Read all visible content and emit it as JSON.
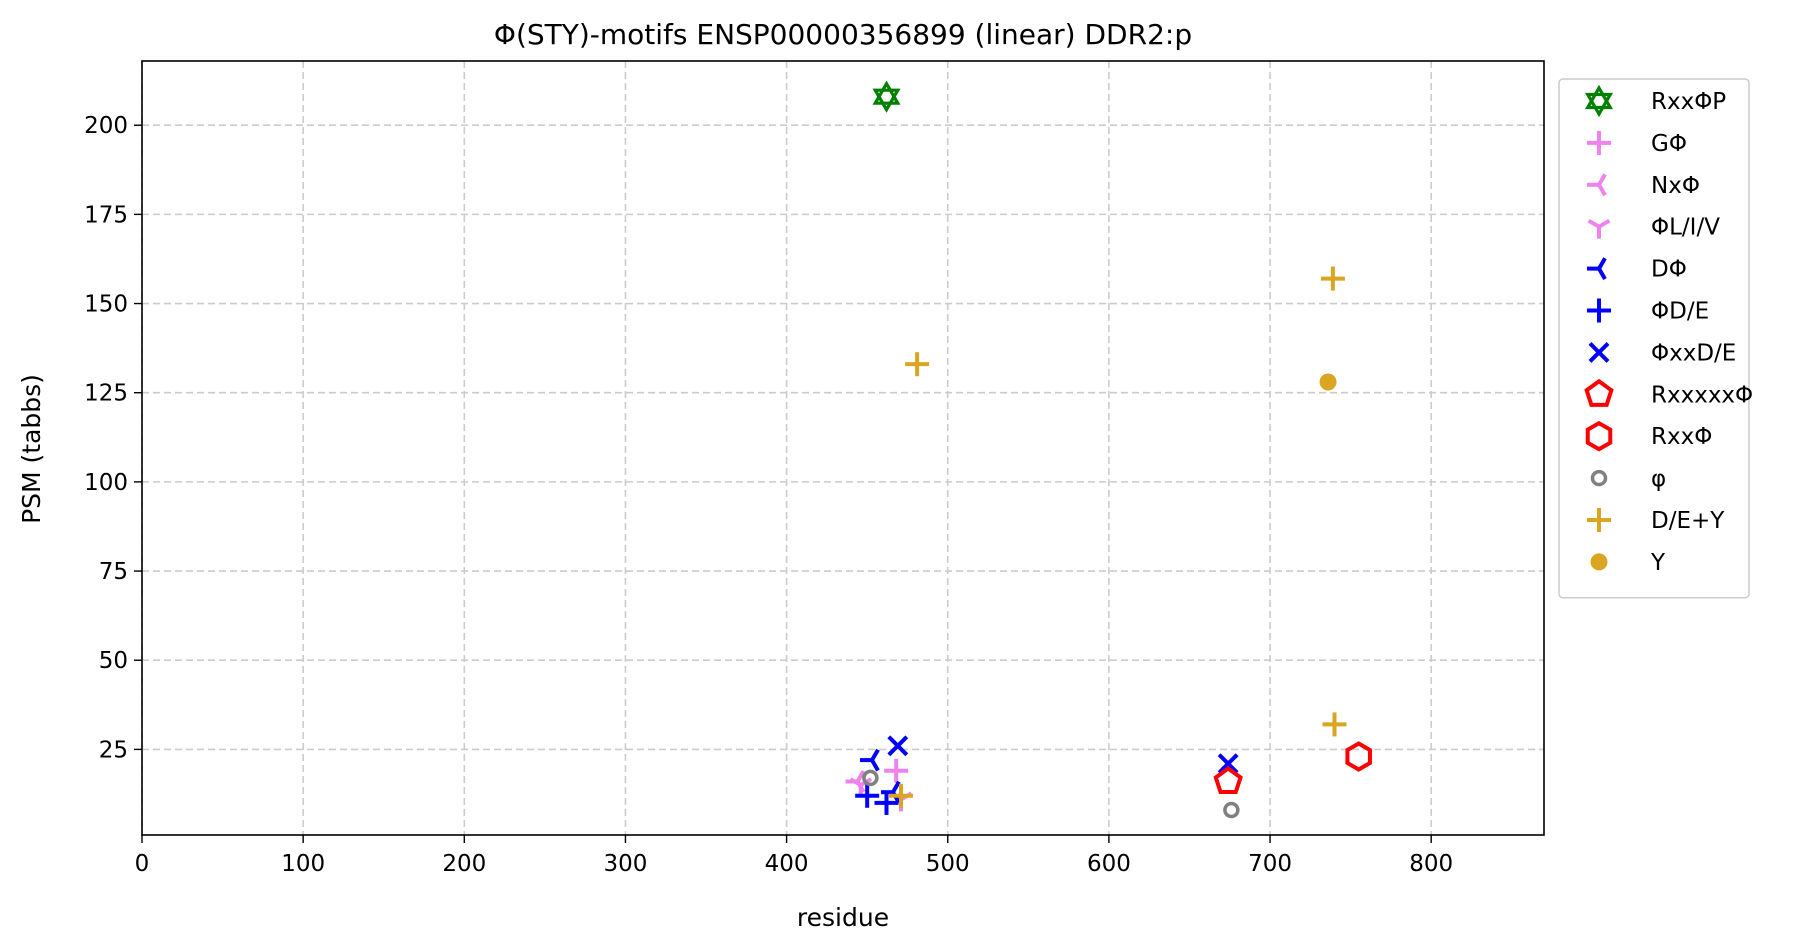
{
  "chart_data": {
    "type": "scatter",
    "title": "Φ(STY)-motifs ENSP00000356899 (linear) DDR2:p",
    "xlabel": "residue",
    "ylabel": "PSM (tabbs)",
    "xlim": [
      0,
      870
    ],
    "ylim": [
      1,
      218
    ],
    "xticks": [
      0,
      100,
      200,
      300,
      400,
      500,
      600,
      700,
      800
    ],
    "yticks": [
      25,
      50,
      75,
      100,
      125,
      150,
      175,
      200
    ],
    "grid": true,
    "legend_position": "outside right",
    "series": [
      {
        "name": "RxxΦP",
        "color": "#008000",
        "marker": "star6",
        "points": [
          [
            462,
            208
          ]
        ]
      },
      {
        "name": "GΦ",
        "color": "#ee82ee",
        "marker": "plus",
        "points": [
          [
            468,
            19
          ]
        ]
      },
      {
        "name": "NxΦ",
        "color": "#ee82ee",
        "marker": "tri_left",
        "points": [
          [
            444,
            16
          ]
        ]
      },
      {
        "name": "ΦL/I/V",
        "color": "#ee82ee",
        "marker": "tri_down",
        "points": [
          [
            446,
            15
          ],
          [
            471,
            11
          ]
        ]
      },
      {
        "name": "DΦ",
        "color": "#0000ff",
        "marker": "tri_left",
        "points": [
          [
            453,
            22
          ],
          [
            466,
            13
          ]
        ]
      },
      {
        "name": "ΦD/E",
        "color": "#0000ff",
        "marker": "plus",
        "points": [
          [
            450,
            12
          ],
          [
            462,
            10
          ]
        ]
      },
      {
        "name": "ΦxxD/E",
        "color": "#0000ff",
        "marker": "x",
        "points": [
          [
            469,
            26
          ],
          [
            674,
            21
          ]
        ]
      },
      {
        "name": "RxxxxxΦ",
        "color": "#ff0000",
        "marker": "pentagon",
        "points": [
          [
            674,
            16
          ]
        ]
      },
      {
        "name": "RxxΦ",
        "color": "#ff0000",
        "marker": "hexagon",
        "points": [
          [
            755,
            23
          ]
        ]
      },
      {
        "name": "φ",
        "color": "#808080",
        "marker": "ring",
        "points": [
          [
            452,
            17
          ],
          [
            676,
            8
          ]
        ]
      },
      {
        "name": "D/E+Y",
        "color": "#daa520",
        "marker": "plus",
        "points": [
          [
            481,
            133
          ],
          [
            739,
            157
          ],
          [
            740,
            32
          ],
          [
            471,
            12
          ]
        ]
      },
      {
        "name": "Y",
        "color": "#daa520",
        "marker": "dot",
        "points": [
          [
            736,
            128
          ]
        ]
      }
    ]
  }
}
